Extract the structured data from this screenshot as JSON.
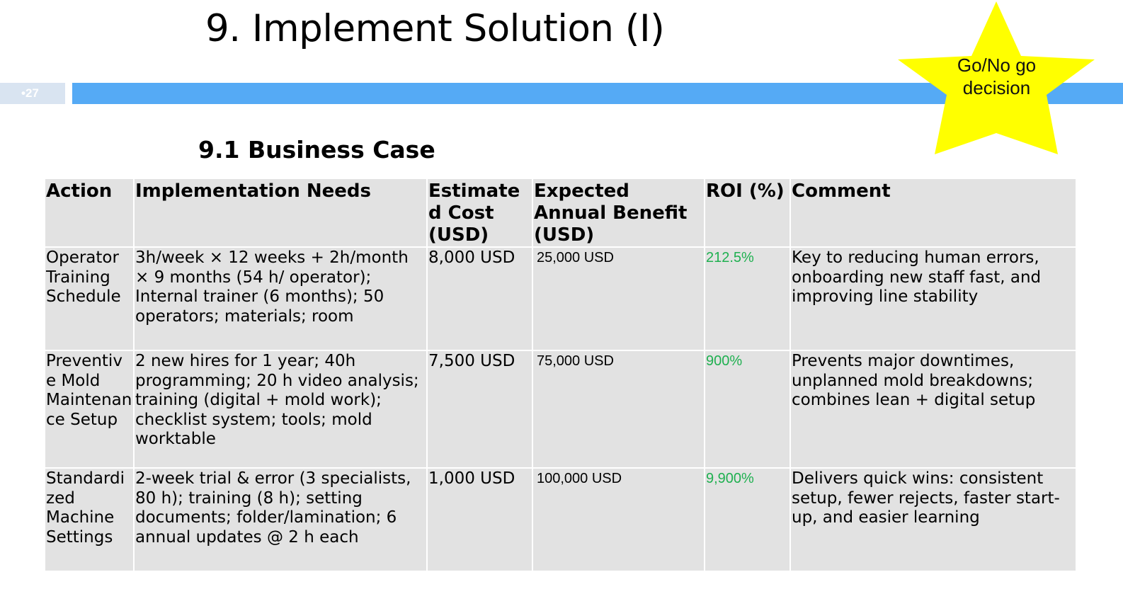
{
  "slide": {
    "title": "9. Implement Solution (I)",
    "slide_number": "•27",
    "subtitle": "9.1 Business Case",
    "callout": {
      "line1": "Go/No go",
      "line2": "decision",
      "color": "#ffff00"
    },
    "bar_color": "#55aaf5"
  },
  "table": {
    "headers": {
      "action": "Action",
      "needs": "Implementation Needs",
      "cost": "Estimated Cost (USD)",
      "benefit": "Expected Annual Benefit (USD)",
      "roi": "ROI (%)",
      "comment": "Comment"
    },
    "rows": [
      {
        "action": "Operator Training Schedule",
        "needs": "3h/week × 12 weeks + 2h/month × 9 months (54 h/ operator); Internal trainer (6 months); 50 operators; materials; room",
        "cost": "8,000 USD",
        "benefit": "25,000 USD",
        "roi": "212.5%",
        "comment": "Key to reducing human errors, onboarding new staff fast, and improving line stability"
      },
      {
        "action": "Preventive Mold Maintenance Setup",
        "needs": "2 new hires for 1 year; 40h programming; 20 h video analysis; training (digital + mold work); checklist system; tools; mold worktable",
        "cost": "7,500 USD",
        "benefit": "75,000 USD",
        "roi": "900%",
        "comment": "Prevents major downtimes, unplanned mold breakdowns; combines lean + digital setup"
      },
      {
        "action": "Standardized Machine Settings",
        "needs": "2-week trial & error (3 specialists, 80 h); training (8 h); setting documents; folder/lamination; 6 annual updates @ 2 h each",
        "cost": "1,000 USD",
        "benefit": "100,000 USD",
        "roi": "9,900%",
        "comment": "Delivers quick wins: consistent setup, fewer rejects, faster start-up, and easier learning"
      }
    ]
  }
}
